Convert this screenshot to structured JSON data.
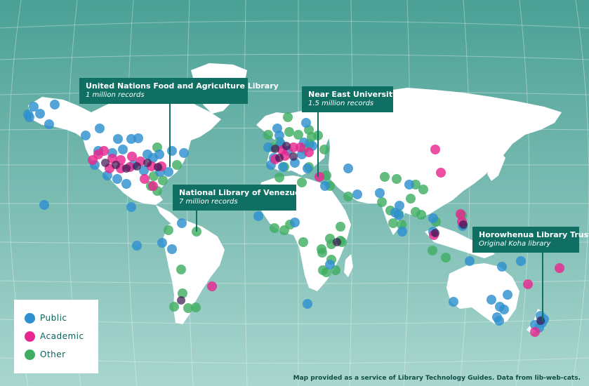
{
  "colors": {
    "public": "#2e90cf",
    "academic": "#e6278f",
    "other": "#3fae63",
    "ocean_top": "#4aa095",
    "ocean_bottom": "#a9d6cf",
    "land": "#ffffff",
    "callout_bg": "#0f6f63"
  },
  "callouts": [
    {
      "title": "United Nations Food and Agriculture Library",
      "subtitle": "1 million records"
    },
    {
      "title": "Near East University",
      "subtitle": "1.5 million records"
    },
    {
      "title": "National Library of Venezuela",
      "subtitle": "7 million records"
    },
    {
      "title": "Horowhenua Library Trust",
      "subtitle": "Original Koha library"
    }
  ],
  "legend": {
    "items": [
      {
        "label": "Public",
        "type": "public"
      },
      {
        "label": "Academic",
        "type": "academic"
      },
      {
        "label": "Other",
        "type": "other"
      }
    ]
  },
  "credit": "Map provided as a service of Library Technology Guides. Data from lib-web-cats."
}
